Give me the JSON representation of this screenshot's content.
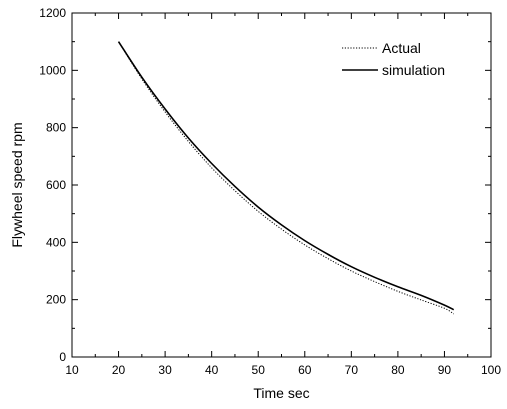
{
  "chart_data": {
    "type": "line",
    "xlabel": "Time sec",
    "ylabel": "Flywheel speed rpm",
    "xlim": [
      10,
      100
    ],
    "ylim": [
      0,
      1200
    ],
    "xticks": [
      10,
      20,
      30,
      40,
      50,
      60,
      70,
      80,
      90,
      100
    ],
    "yticks": [
      0,
      200,
      400,
      600,
      800,
      1000,
      1200
    ],
    "grid": false,
    "legend_position": "top-right",
    "series": [
      {
        "name": "Actual",
        "style": "dotted",
        "color": "#000000",
        "x": [
          20,
          25,
          30,
          35,
          40,
          45,
          50,
          55,
          60,
          65,
          70,
          75,
          80,
          85,
          90,
          92
        ],
        "y": [
          1100,
          970,
          855,
          752,
          660,
          580,
          508,
          446,
          391,
          343,
          300,
          263,
          229,
          199,
          170,
          150
        ]
      },
      {
        "name": "simulation",
        "style": "solid",
        "color": "#000000",
        "x": [
          20,
          25,
          30,
          35,
          40,
          45,
          50,
          55,
          60,
          65,
          70,
          75,
          80,
          85,
          90,
          92
        ],
        "y": [
          1100,
          976,
          865,
          764,
          675,
          595,
          523,
          461,
          406,
          358,
          315,
          278,
          245,
          215,
          181,
          165
        ]
      }
    ]
  }
}
